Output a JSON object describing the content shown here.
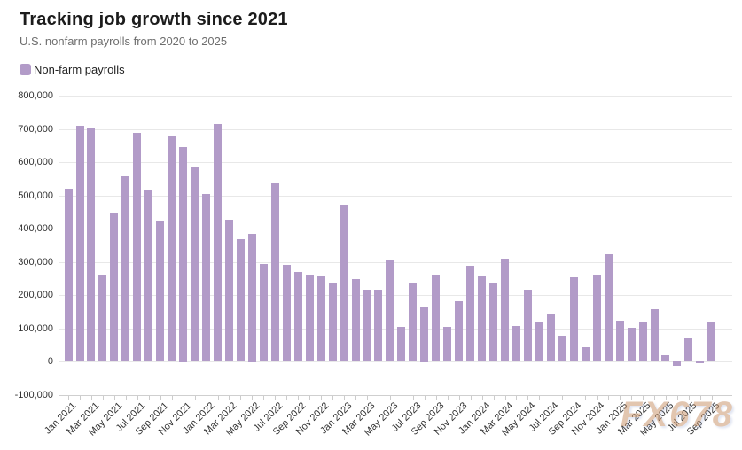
{
  "header": {
    "title": "Tracking job growth since 2021",
    "subtitle": "U.S. nonfarm payrolls from 2020 to 2025"
  },
  "legend": {
    "label": "Non-farm payrolls",
    "swatch_color": "#b29bc8"
  },
  "watermark": {
    "text": "FX678",
    "color": "#cb9871"
  },
  "chart_data": {
    "type": "bar",
    "title": "Tracking job growth since 2021",
    "subtitle": "U.S. nonfarm payrolls from 2020 to 2025",
    "xlabel": "",
    "ylabel": "",
    "grid": true,
    "legend_position": "top-left",
    "bar_color": "#b29bc8",
    "ylim": [
      -100000,
      800000
    ],
    "y_ticks": [
      800000,
      700000,
      600000,
      500000,
      400000,
      300000,
      200000,
      100000,
      0,
      -100000
    ],
    "y_tick_labels": [
      "800,000",
      "700,000",
      "600,000",
      "500,000",
      "400,000",
      "300,000",
      "200,000",
      "100,000",
      "0",
      "-100,000"
    ],
    "categories": [
      "Jan 2021",
      "Feb 2021",
      "Mar 2021",
      "Apr 2021",
      "May 2021",
      "Jun 2021",
      "Jul 2021",
      "Aug 2021",
      "Sep 2021",
      "Oct 2021",
      "Nov 2021",
      "Dec 2021",
      "Jan 2022",
      "Feb 2022",
      "Mar 2022",
      "Apr 2022",
      "May 2022",
      "Jun 2022",
      "Jul 2022",
      "Aug 2022",
      "Sep 2022",
      "Oct 2022",
      "Nov 2022",
      "Dec 2022",
      "Jan 2023",
      "Feb 2023",
      "Mar 2023",
      "Apr 2023",
      "May 2023",
      "Jun 2023",
      "Jul 2023",
      "Aug 2023",
      "Sep 2023",
      "Oct 2023",
      "Nov 2023",
      "Dec 2023",
      "Jan 2024",
      "Feb 2024",
      "Mar 2024",
      "Apr 2024",
      "May 2024",
      "Jun 2024",
      "Jul 2024",
      "Aug 2024",
      "Sep 2024",
      "Oct 2024",
      "Nov 2024",
      "Dec 2024",
      "Jan 2025",
      "Feb 2025",
      "Mar 2025",
      "Apr 2025",
      "May 2025",
      "Jun 2025",
      "Jul 2025",
      "Aug 2025",
      "Sep 2025"
    ],
    "x_tick_labels": [
      "Jan 2021",
      "Mar 2021",
      "May 2021",
      "Jul 2021",
      "Sep 2021",
      "Nov 2021",
      "Jan 2022",
      "Mar 2022",
      "May 2022",
      "Jul 2022",
      "Sep 2022",
      "Nov 2022",
      "Jan 2023",
      "Mar 2023",
      "May 2023",
      "Jul 2023",
      "Sep 2023",
      "Nov 2023",
      "Jan 2024",
      "Mar 2024",
      "May 2024",
      "Jul 2024",
      "Sep 2024",
      "Nov 2024",
      "Jan 2025",
      "Mar 2025",
      "May 2025",
      "Jul 2025",
      "Sep 2025"
    ],
    "series": [
      {
        "name": "Non-farm payrolls",
        "values": [
          520000,
          710000,
          704000,
          263000,
          447000,
          557000,
          689000,
          517000,
          424000,
          677000,
          647000,
          588000,
          504000,
          714000,
          428000,
          368000,
          386000,
          293000,
          537000,
          292000,
          269000,
          263000,
          256000,
          239000,
          472000,
          248000,
          217000,
          217000,
          306000,
          105000,
          236000,
          165000,
          262000,
          105000,
          182000,
          290000,
          256000,
          236000,
          310000,
          108000,
          216000,
          118000,
          144000,
          78000,
          255000,
          44000,
          261000,
          323000,
          125000,
          102000,
          120000,
          158000,
          19000,
          -13000,
          72000,
          -4000,
          119000
        ]
      }
    ]
  }
}
